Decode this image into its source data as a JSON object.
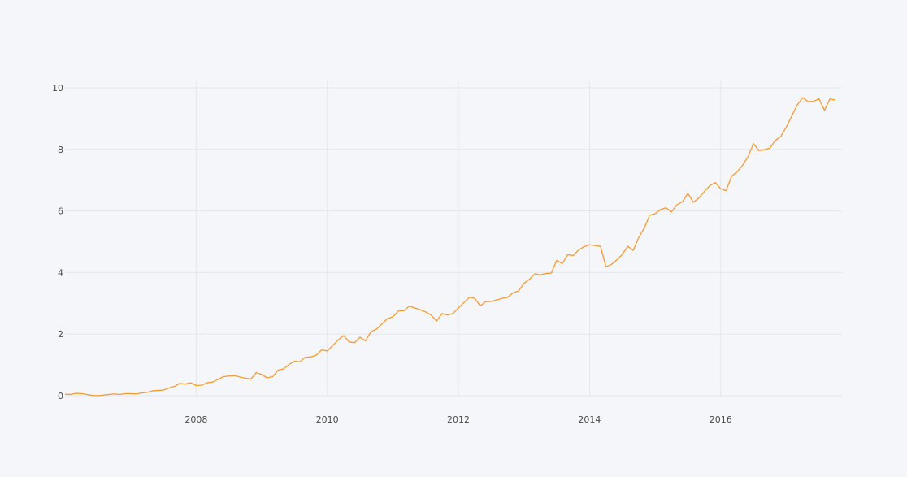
{
  "chart_data": {
    "type": "line",
    "title": "",
    "xlabel": "",
    "ylabel": "",
    "xlim": [
      2006.0,
      2017.85
    ],
    "ylim": [
      0,
      10.2
    ],
    "x_ticks": [
      {
        "value": 2008,
        "label": "2008"
      },
      {
        "value": 2010,
        "label": "2010"
      },
      {
        "value": 2012,
        "label": "2012"
      },
      {
        "value": 2014,
        "label": "2014"
      },
      {
        "value": 2016,
        "label": "2016"
      }
    ],
    "y_ticks": [
      {
        "value": 0,
        "label": "0"
      },
      {
        "value": 2,
        "label": "2"
      },
      {
        "value": 4,
        "label": "4"
      },
      {
        "value": 6,
        "label": "6"
      },
      {
        "value": 8,
        "label": "8"
      },
      {
        "value": 10,
        "label": "10"
      }
    ],
    "grid": true,
    "colors": {
      "background": "#f5f6f9",
      "grid": "#e4e6ea",
      "series": "#f39a34"
    },
    "series": [
      {
        "x": [
          2006.0,
          2006.083,
          2006.167,
          2006.25,
          2006.333,
          2006.417,
          2006.5,
          2006.583,
          2006.667,
          2006.75,
          2006.833,
          2006.917,
          2007.0,
          2007.083,
          2007.167,
          2007.25,
          2007.333,
          2007.417,
          2007.5,
          2007.583,
          2007.667,
          2007.75,
          2007.833,
          2007.917,
          2008.0,
          2008.083,
          2008.167,
          2008.25,
          2008.333,
          2008.417,
          2008.5,
          2008.583,
          2008.667,
          2008.75,
          2008.833,
          2008.917,
          2009.0,
          2009.083,
          2009.167,
          2009.25,
          2009.333,
          2009.417,
          2009.5,
          2009.583,
          2009.667,
          2009.75,
          2009.833,
          2009.917,
          2010.0,
          2010.083,
          2010.167,
          2010.25,
          2010.333,
          2010.417,
          2010.5,
          2010.583,
          2010.667,
          2010.75,
          2010.833,
          2010.917,
          2011.0,
          2011.083,
          2011.167,
          2011.25,
          2011.333,
          2011.417,
          2011.5,
          2011.583,
          2011.667,
          2011.75,
          2011.833,
          2011.917,
          2012.0,
          2012.083,
          2012.167,
          2012.25,
          2012.333,
          2012.417,
          2012.5,
          2012.583,
          2012.667,
          2012.75,
          2012.833,
          2012.917,
          2013.0,
          2013.083,
          2013.167,
          2013.25,
          2013.333,
          2013.417,
          2013.5,
          2013.583,
          2013.667,
          2013.75,
          2013.833,
          2013.917,
          2014.0,
          2014.083,
          2014.167,
          2014.25,
          2014.333,
          2014.417,
          2014.5,
          2014.583,
          2014.667,
          2014.75,
          2014.833,
          2014.917,
          2015.0,
          2015.083,
          2015.167,
          2015.25,
          2015.333,
          2015.417,
          2015.5,
          2015.583,
          2015.667,
          2015.75,
          2015.833,
          2015.917,
          2016.0,
          2016.083,
          2016.167,
          2016.25,
          2016.333,
          2016.417,
          2016.5,
          2016.583,
          2016.667,
          2016.75,
          2016.833,
          2016.917,
          2017.0,
          2017.083,
          2017.167,
          2017.25,
          2017.333,
          2017.417,
          2017.5,
          2017.583,
          2017.667,
          2017.75
        ],
        "y": [
          0.05,
          0.04,
          0.08,
          0.07,
          0.04,
          0.01,
          0.0,
          0.02,
          0.04,
          0.06,
          0.04,
          0.07,
          0.07,
          0.06,
          0.09,
          0.11,
          0.16,
          0.17,
          0.18,
          0.25,
          0.3,
          0.4,
          0.38,
          0.42,
          0.33,
          0.34,
          0.42,
          0.44,
          0.53,
          0.62,
          0.64,
          0.65,
          0.61,
          0.57,
          0.54,
          0.75,
          0.69,
          0.58,
          0.62,
          0.83,
          0.87,
          1.01,
          1.12,
          1.1,
          1.25,
          1.26,
          1.32,
          1.49,
          1.45,
          1.63,
          1.81,
          1.95,
          1.75,
          1.72,
          1.9,
          1.78,
          2.08,
          2.16,
          2.33,
          2.5,
          2.56,
          2.75,
          2.76,
          2.91,
          2.85,
          2.79,
          2.72,
          2.62,
          2.42,
          2.67,
          2.62,
          2.67,
          2.85,
          3.02,
          3.2,
          3.16,
          2.92,
          3.05,
          3.06,
          3.11,
          3.16,
          3.2,
          3.34,
          3.4,
          3.65,
          3.78,
          3.96,
          3.92,
          3.97,
          3.98,
          4.4,
          4.29,
          4.58,
          4.55,
          4.73,
          4.84,
          4.9,
          4.88,
          4.85,
          4.19,
          4.26,
          4.41,
          4.59,
          4.85,
          4.72,
          5.14,
          5.44,
          5.86,
          5.91,
          6.05,
          6.1,
          5.97,
          6.2,
          6.3,
          6.57,
          6.28,
          6.42,
          6.63,
          6.82,
          6.92,
          6.72,
          6.66,
          7.13,
          7.27,
          7.48,
          7.76,
          8.19,
          7.96,
          7.99,
          8.04,
          8.29,
          8.42,
          8.72,
          9.08,
          9.44,
          9.68,
          9.55,
          9.56,
          9.64,
          9.27,
          9.64,
          9.6
        ]
      }
    ]
  }
}
